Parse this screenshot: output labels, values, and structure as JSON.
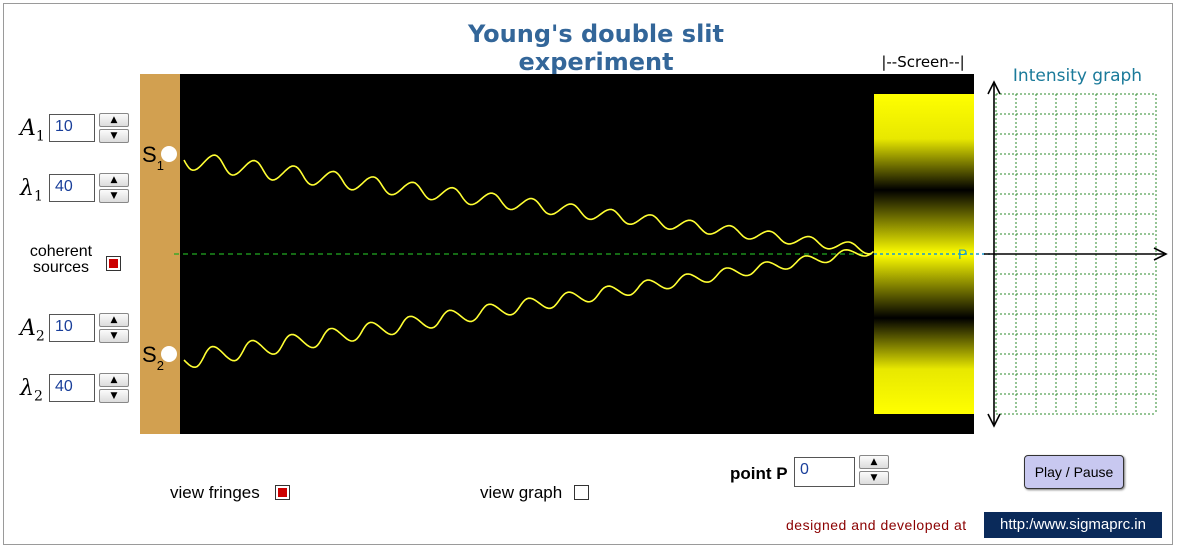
{
  "title": "Young's double slit experiment",
  "screen_label": "|--Screen--|",
  "intensity_title": "Intensity graph",
  "source1": {
    "label": "S",
    "sub": "1"
  },
  "source2": {
    "label": "S",
    "sub": "2"
  },
  "point_marker": "P",
  "controls": {
    "A1": {
      "symbol": "A",
      "sub": "1",
      "value": "10"
    },
    "lambda1": {
      "symbol": "λ",
      "sub": "1",
      "value": "40"
    },
    "A2": {
      "symbol": "A",
      "sub": "2",
      "value": "10"
    },
    "lambda2": {
      "symbol": "λ",
      "sub": "2",
      "value": "40"
    },
    "spin_up": "▲",
    "spin_down": "▼"
  },
  "coherent": {
    "label": "coherent sources",
    "checked": true
  },
  "view_fringes": {
    "label": "view fringes",
    "checked": true
  },
  "view_graph": {
    "label": "view graph",
    "checked": false
  },
  "point_p": {
    "label": "point P",
    "value": "0"
  },
  "play_button": "Play / Pause",
  "credit": "designed  and  developed  at",
  "url": "http:/www.sigmaprc.in",
  "colors": {
    "title": "#336699",
    "slit_wall": "#d2a050",
    "canvas": "#000000",
    "wave": "#ffff33",
    "fringe": "#ffff00",
    "grid": "#2e8b2e",
    "axis_line": "#22aa22",
    "checkbox_fill": "#cc0000",
    "button": "#c8c8f0"
  }
}
